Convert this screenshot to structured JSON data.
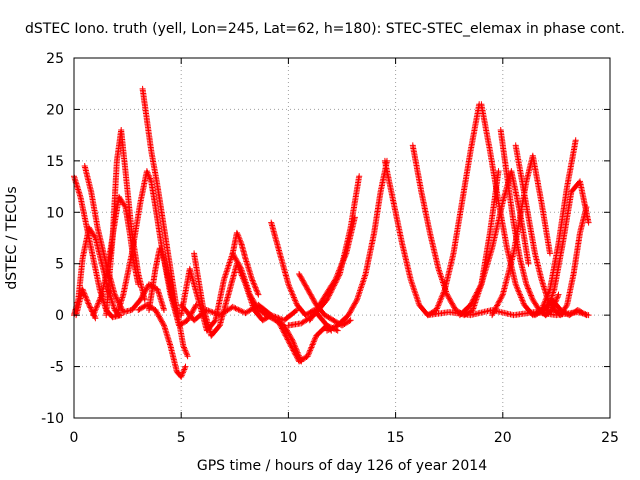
{
  "chart_data": {
    "type": "scatter",
    "title": "dSTEC Iono. truth (yell, Lon=245, Lat=62, h=180): STEC-STEC_elemax in phase cont.",
    "xlabel": "GPS time / hours of day 126 of year 2014",
    "ylabel": "dSTEC  / TECUs",
    "xlim": [
      0,
      25
    ],
    "ylim": [
      -10,
      25
    ],
    "xticks": [
      0,
      5,
      10,
      15,
      20,
      25
    ],
    "yticks": [
      -10,
      -5,
      0,
      5,
      10,
      15,
      20,
      25
    ],
    "xtick_labels": [
      "0",
      "5",
      "10",
      "15",
      "20",
      "25"
    ],
    "ytick_labels": [
      "-10",
      "-5",
      "0",
      "5",
      "10",
      "15",
      "20",
      "25"
    ],
    "grid": true,
    "legend": "none",
    "marker": "plus",
    "color": "#ff0000",
    "series": [
      {
        "x": [
          0.0,
          0.3,
          0.6,
          0.9,
          1.2,
          1.5,
          1.8,
          2.2
        ],
        "y": [
          13.5,
          11.5,
          8.5,
          5.5,
          2.5,
          0.5,
          -0.2,
          0.0
        ]
      },
      {
        "x": [
          0.0,
          0.2,
          0.4,
          0.7,
          1.0,
          1.3,
          1.6,
          1.9,
          2.1
        ],
        "y": [
          0.0,
          1.5,
          5.5,
          8.5,
          7.5,
          5.0,
          2.5,
          0.5,
          0.0
        ]
      },
      {
        "x": [
          0.1,
          0.4,
          0.7,
          1.0
        ],
        "y": [
          0.0,
          2.5,
          1.0,
          -0.3
        ]
      },
      {
        "x": [
          0.5,
          0.8,
          1.1,
          1.5,
          1.9,
          2.3,
          2.7,
          3.1,
          3.5,
          3.9,
          4.2
        ],
        "y": [
          14.5,
          12.0,
          8.5,
          5.0,
          2.0,
          0.3,
          0.5,
          1.5,
          3.0,
          2.5,
          0.5
        ]
      },
      {
        "x": [
          0.9,
          1.3,
          1.6,
          1.9,
          2.1,
          2.4,
          2.6,
          2.8,
          3.0
        ],
        "y": [
          0.0,
          2.0,
          5.0,
          9.0,
          11.5,
          10.5,
          8.0,
          5.0,
          3.0
        ]
      },
      {
        "x": [
          1.5,
          1.8,
          2.0,
          2.2,
          2.4,
          2.7,
          3.0,
          3.3
        ],
        "y": [
          0.0,
          7.5,
          15.0,
          18.0,
          14.0,
          8.0,
          4.0,
          1.5
        ]
      },
      {
        "x": [
          2.0,
          2.3,
          2.7,
          3.1,
          3.4,
          3.6,
          3.8,
          4.1,
          4.5,
          4.9,
          5.3,
          5.7
        ],
        "y": [
          0.0,
          2.0,
          6.0,
          11.0,
          14.0,
          13.0,
          10.5,
          6.5,
          2.0,
          -1.0,
          -0.5,
          1.0
        ]
      },
      {
        "x": [
          3.2,
          3.4,
          3.6,
          3.9,
          4.2,
          4.5,
          4.8,
          5.1,
          5.3
        ],
        "y": [
          22.0,
          19.0,
          16.0,
          12.5,
          8.5,
          4.5,
          0.5,
          -3.0,
          -4.0
        ]
      },
      {
        "x": [
          3.0,
          3.4,
          3.8,
          4.2,
          4.5,
          4.8,
          5.0,
          5.2
        ],
        "y": [
          0.5,
          1.0,
          0.5,
          -1.0,
          -3.0,
          -5.5,
          -6.0,
          -5.0
        ]
      },
      {
        "x": [
          3.5,
          3.8,
          4.0,
          4.2,
          4.5,
          4.8
        ],
        "y": [
          0.5,
          4.5,
          6.5,
          5.5,
          2.5,
          0.0
        ]
      },
      {
        "x": [
          5.0,
          5.4,
          5.8,
          6.2,
          6.6,
          7.0,
          7.4,
          7.8,
          8.2,
          8.6,
          9.0,
          9.4,
          9.8,
          10.2,
          10.6
        ],
        "y": [
          0.0,
          4.5,
          1.5,
          -1.5,
          -0.5,
          3.5,
          6.0,
          4.5,
          2.0,
          0.5,
          0.0,
          -0.5,
          -1.0,
          -2.5,
          -4.5
        ]
      },
      {
        "x": [
          5.6,
          6.0,
          6.4,
          6.8,
          7.2,
          7.6,
          8.0,
          8.4,
          8.8,
          9.2
        ],
        "y": [
          6.0,
          1.0,
          -2.0,
          -1.0,
          2.0,
          5.0,
          3.0,
          0.5,
          -0.5,
          0.0
        ]
      },
      {
        "x": [
          5.0,
          5.6,
          6.2,
          6.8,
          7.4,
          8.0,
          8.6,
          9.2,
          9.8,
          10.4
        ],
        "y": [
          1.0,
          -0.5,
          0.5,
          0.0,
          0.8,
          0.2,
          1.0,
          0.0,
          -0.5,
          0.5
        ]
      },
      {
        "x": [
          7.4,
          7.6,
          7.8,
          8.0,
          8.3,
          8.6
        ],
        "y": [
          6.0,
          8.0,
          7.0,
          5.5,
          3.5,
          2.0
        ]
      },
      {
        "x": [
          9.2,
          9.6,
          10.0,
          10.4,
          10.8,
          11.2,
          11.6,
          12.0
        ],
        "y": [
          9.0,
          6.0,
          3.0,
          1.0,
          0.0,
          0.5,
          -0.5,
          -1.5
        ]
      },
      {
        "x": [
          9.5,
          10.0,
          10.5,
          10.9,
          11.3,
          11.8,
          12.3
        ],
        "y": [
          -0.5,
          -2.5,
          -4.5,
          -4.0,
          -2.0,
          -1.0,
          -1.5
        ]
      },
      {
        "x": [
          10.5,
          10.9,
          11.3,
          11.7,
          12.1,
          12.5,
          12.9
        ],
        "y": [
          4.0,
          2.5,
          1.0,
          0.0,
          -0.5,
          -1.0,
          -0.5
        ]
      },
      {
        "x": [
          10.0,
          10.6,
          11.2,
          11.8,
          12.4,
          12.9,
          13.3
        ],
        "y": [
          -1.0,
          -0.8,
          0.0,
          1.5,
          4.0,
          8.5,
          13.5
        ]
      },
      {
        "x": [
          11.0,
          11.6,
          12.2,
          12.7,
          13.1
        ],
        "y": [
          -0.5,
          1.5,
          3.5,
          6.0,
          9.5
        ]
      },
      {
        "x": [
          11.8,
          12.3,
          12.8,
          13.2,
          13.6,
          14.0,
          14.3,
          14.6
        ],
        "y": [
          -1.5,
          -1.0,
          0.0,
          1.5,
          4.0,
          8.0,
          12.0,
          15.0
        ]
      },
      {
        "x": [
          14.5,
          14.9,
          15.3,
          15.7,
          16.1,
          16.5,
          16.9,
          17.3,
          17.7,
          18.1,
          18.5,
          18.9
        ],
        "y": [
          15.0,
          11.0,
          7.0,
          3.5,
          1.0,
          0.0,
          0.5,
          2.5,
          6.0,
          11.0,
          16.0,
          20.5
        ]
      },
      {
        "x": [
          15.8,
          16.2,
          16.6,
          17.0,
          17.4,
          17.8,
          18.2,
          18.6,
          19.0,
          19.4,
          19.8
        ],
        "y": [
          16.5,
          12.0,
          8.0,
          4.5,
          2.0,
          0.5,
          0.0,
          0.5,
          3.0,
          8.0,
          14.0
        ]
      },
      {
        "x": [
          19.0,
          19.4,
          19.8,
          20.2,
          20.6,
          21.0,
          21.4,
          21.8,
          22.2,
          22.6,
          23.0,
          23.4
        ],
        "y": [
          20.5,
          16.0,
          11.0,
          6.5,
          3.0,
          1.0,
          0.0,
          0.5,
          2.5,
          7.0,
          12.5,
          17.0
        ]
      },
      {
        "x": [
          19.9,
          20.2,
          20.5,
          20.8,
          21.1,
          21.4,
          21.7,
          22.0,
          22.3,
          22.6
        ],
        "y": [
          18.0,
          13.5,
          9.0,
          5.5,
          3.0,
          1.5,
          0.5,
          0.0,
          0.5,
          2.0
        ]
      },
      {
        "x": [
          20.6,
          20.9,
          21.2,
          21.5,
          21.8,
          22.1,
          22.4,
          22.7,
          23.0,
          23.3,
          23.6,
          23.9
        ],
        "y": [
          16.5,
          13.0,
          9.5,
          6.0,
          3.5,
          1.5,
          0.5,
          0.0,
          1.0,
          4.0,
          8.0,
          10.5
        ]
      },
      {
        "x": [
          18.0,
          18.5,
          19.0,
          19.5,
          20.0,
          20.4,
          20.8,
          21.2
        ],
        "y": [
          0.0,
          1.0,
          3.0,
          6.5,
          11.0,
          14.0,
          10.0,
          5.0
        ]
      },
      {
        "x": [
          19.5,
          20.0,
          20.5,
          20.8,
          21.1,
          21.4,
          21.8,
          22.2
        ],
        "y": [
          0.0,
          2.0,
          6.0,
          9.5,
          13.0,
          15.5,
          11.0,
          6.0
        ]
      },
      {
        "x": [
          21.5,
          21.9,
          22.3,
          22.7,
          23.1,
          23.5,
          23.9
        ],
        "y": [
          0.0,
          0.5,
          1.5,
          0.5,
          0.0,
          0.5,
          0.0
        ]
      },
      {
        "x": [
          22.0,
          22.4,
          22.8,
          23.2,
          23.6,
          24.0
        ],
        "y": [
          0.0,
          2.5,
          7.0,
          12.0,
          13.0,
          9.0
        ]
      },
      {
        "x": [
          16.5,
          17.5,
          18.5,
          19.5,
          20.5,
          21.5,
          22.5,
          23.5,
          24.0
        ],
        "y": [
          0.0,
          0.3,
          0.0,
          0.5,
          0.0,
          0.3,
          0.0,
          0.3,
          0.0
        ]
      }
    ]
  }
}
